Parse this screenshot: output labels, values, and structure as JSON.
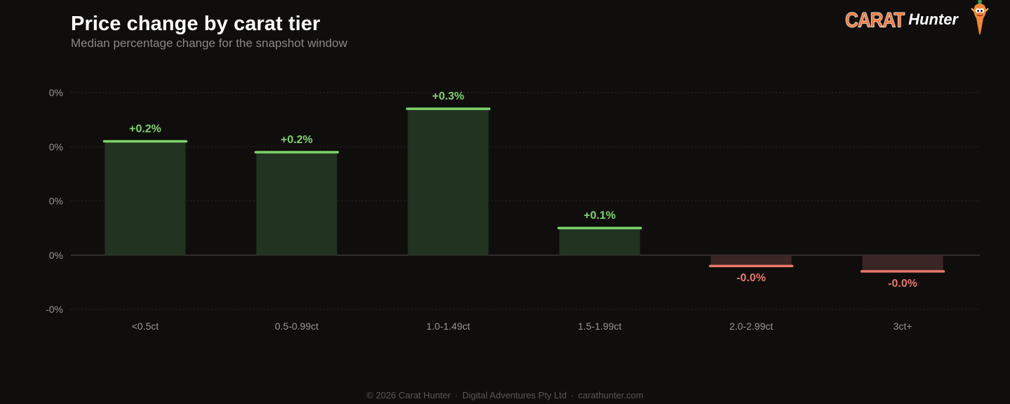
{
  "header": {
    "title": "Price change by carat tier",
    "subtitle": "Median percentage change for the snapshot window"
  },
  "brand": {
    "name_part1": "CARAT",
    "name_part2": "Hunter",
    "mascot_icon": "carrot-mascot-icon"
  },
  "chart_data": {
    "type": "bar",
    "title": "Price change by carat tier",
    "subtitle": "Median percentage change for the snapshot window",
    "xlabel": "",
    "ylabel": "",
    "categories": [
      "<0.5ct",
      "0.5-0.99ct",
      "1.0-1.49ct",
      "1.5-1.99ct",
      "2.0-2.99ct",
      "3ct+"
    ],
    "values": [
      0.21,
      0.19,
      0.27,
      0.05,
      -0.02,
      -0.03
    ],
    "value_labels": [
      "+0.2%",
      "+0.2%",
      "+0.3%",
      "+0.1%",
      "-0.0%",
      "-0.0%"
    ],
    "yticks": [
      0.3,
      0.2,
      0.1,
      0.0,
      -0.1
    ],
    "ytick_labels": [
      "0%",
      "0%",
      "0%",
      "0%",
      "-0%"
    ],
    "ylim": [
      -0.1,
      0.3
    ],
    "grid": true,
    "colors": {
      "positive": "#7fd36c",
      "positive_fill": "#223321",
      "negative": "#e8776b",
      "negative_fill": "#3a2624",
      "grid": "#2a2826",
      "zero_line": "#3a3836",
      "tick_text": "#9b968f"
    }
  },
  "footer": {
    "copyright": "© 2026 Carat Hunter",
    "company": "Digital Adventures Pty Ltd",
    "website": "carathunter.com",
    "separator": "·"
  }
}
